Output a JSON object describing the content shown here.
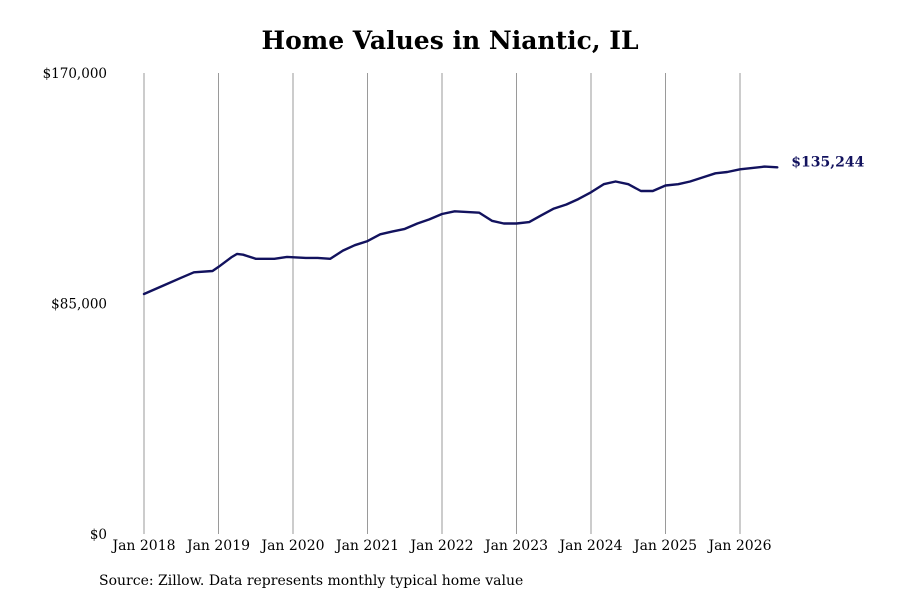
{
  "chart_data": {
    "type": "line",
    "title": "Home Values in Niantic, IL",
    "source": "Source: Zillow. Data represents monthly typical home value",
    "ylim": [
      0,
      170000
    ],
    "yticks": [
      {
        "value": 0,
        "label": "$0"
      },
      {
        "value": 85000,
        "label": "$85,000"
      },
      {
        "value": 170000,
        "label": "$170,000"
      }
    ],
    "xticks": [
      {
        "value": 2018.0,
        "label": "Jan 2018"
      },
      {
        "value": 2019.0,
        "label": "Jan 2019"
      },
      {
        "value": 2020.0,
        "label": "Jan 2020"
      },
      {
        "value": 2021.0,
        "label": "Jan 2021"
      },
      {
        "value": 2022.0,
        "label": "Jan 2022"
      },
      {
        "value": 2023.0,
        "label": "Jan 2023"
      },
      {
        "value": 2024.0,
        "label": "Jan 2024"
      },
      {
        "value": 2025.0,
        "label": "Jan 2025"
      },
      {
        "value": 2026.0,
        "label": "Jan 2026"
      }
    ],
    "grid": "vertical",
    "line_color": "#12125e",
    "end_label": "$135,244",
    "series": [
      {
        "x": [
          2018.0,
          2018.25,
          2018.5,
          2018.67,
          2018.92,
          2019.0,
          2019.17,
          2019.25,
          2019.33,
          2019.5,
          2019.75,
          2019.92,
          2020.17,
          2020.33,
          2020.5,
          2020.67,
          2020.83,
          2021.0,
          2021.17,
          2021.33,
          2021.5,
          2021.67,
          2021.83,
          2022.0,
          2022.17,
          2022.5,
          2022.67,
          2022.83,
          2023.0,
          2023.17,
          2023.33,
          2023.5,
          2023.67,
          2023.83,
          2024.0,
          2024.17,
          2024.33,
          2024.5,
          2024.67,
          2024.83,
          2025.0,
          2025.17,
          2025.33,
          2025.5,
          2025.67,
          2025.83,
          2026.0,
          2026.17,
          2026.33,
          2026.5
        ],
        "y": [
          88500,
          91500,
          94500,
          96500,
          97000,
          98500,
          102000,
          103300,
          103000,
          101500,
          101500,
          102200,
          101800,
          101800,
          101500,
          104500,
          106500,
          108000,
          110500,
          111500,
          112500,
          114500,
          116000,
          118000,
          119000,
          118500,
          115500,
          114500,
          114500,
          115000,
          117500,
          120000,
          121500,
          123500,
          126000,
          129000,
          130000,
          129000,
          126500,
          126500,
          128500,
          129000,
          130000,
          131500,
          133000,
          133500,
          134500,
          135000,
          135500,
          135244
        ]
      }
    ]
  }
}
